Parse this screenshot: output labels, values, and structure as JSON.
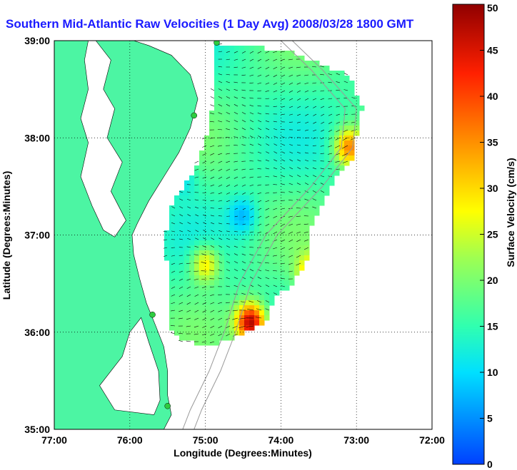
{
  "chart_data": {
    "type": "heatmap",
    "title": "Southern Mid-Atlantic Raw Velocities (1 Day Avg) 2008/03/28 1800 GMT",
    "xlabel": "Longitude (Degrees:Minutes)",
    "ylabel": "Latitude (Degrees:Minutes)",
    "colorbar_label": "Surface Velocity (cm/s)",
    "xlim": [
      -77,
      -72
    ],
    "ylim": [
      35,
      39
    ],
    "x_ticks": [
      {
        "value": -77,
        "label": "77:00"
      },
      {
        "value": -76,
        "label": "76:00"
      },
      {
        "value": -75,
        "label": "75:00"
      },
      {
        "value": -74,
        "label": "74:00"
      },
      {
        "value": -73,
        "label": "73:00"
      },
      {
        "value": -72,
        "label": "72:00"
      }
    ],
    "y_ticks": [
      {
        "value": 35,
        "label": "35:00"
      },
      {
        "value": 36,
        "label": "36:00"
      },
      {
        "value": 37,
        "label": "37:00"
      },
      {
        "value": 38,
        "label": "38:00"
      },
      {
        "value": 39,
        "label": "39:00"
      }
    ],
    "colorbar": {
      "min": 0,
      "max": 50,
      "ticks": [
        {
          "value": 0,
          "label": "0"
        },
        {
          "value": 5,
          "label": "5"
        },
        {
          "value": 10,
          "label": "10"
        },
        {
          "value": 15,
          "label": "15"
        },
        {
          "value": 20,
          "label": "20"
        },
        {
          "value": 25,
          "label": "25"
        },
        {
          "value": 30,
          "label": "30"
        },
        {
          "value": 35,
          "label": "35"
        },
        {
          "value": 40,
          "label": "40"
        },
        {
          "value": 45,
          "label": "45"
        },
        {
          "value": 50,
          "label": "50"
        }
      ]
    },
    "grid": true,
    "colors": {
      "land": "#4cf5a3",
      "background": "#ffffff",
      "title": "#1a1aff",
      "grid": "#000000",
      "bathymetry": "#999999",
      "station": "#2ecc40"
    },
    "stations": [
      {
        "lon": -74.85,
        "lat": 38.98
      },
      {
        "lon": -75.15,
        "lat": 38.23
      },
      {
        "lon": -75.7,
        "lat": 36.18
      },
      {
        "lon": -75.5,
        "lat": 35.24
      }
    ],
    "velocity_hotspots": [
      {
        "lon": -74.4,
        "lat": 36.1,
        "speed": 48
      },
      {
        "lon": -73.1,
        "lat": 37.9,
        "speed": 36
      },
      {
        "lon": -73.6,
        "lat": 36.6,
        "speed": 32
      },
      {
        "lon": -75.0,
        "lat": 36.7,
        "speed": 30
      },
      {
        "lon": -74.5,
        "lat": 37.2,
        "speed": 8
      },
      {
        "lon": -75.3,
        "lat": 37.6,
        "speed": 10
      }
    ]
  }
}
